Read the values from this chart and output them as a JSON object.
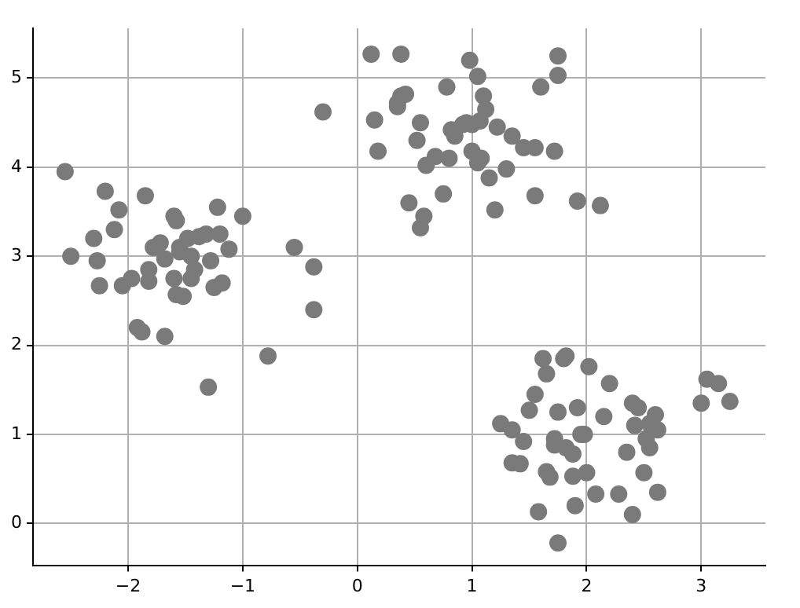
{
  "chart_data": {
    "type": "scatter",
    "marker": "circle",
    "grid": true,
    "xlim": [
      -2.83,
      3.56
    ],
    "ylim": [
      -0.47,
      5.56
    ],
    "xticks": [
      {
        "value": -2,
        "label": "−2"
      },
      {
        "value": -1,
        "label": "−1"
      },
      0,
      1,
      2,
      3
    ],
    "yticks": [
      0,
      1,
      2,
      3,
      4,
      5
    ],
    "series": [
      {
        "color": "#7a7a7a",
        "x": [
          -2.55,
          -2.5,
          -2.3,
          -2.27,
          -2.2,
          -2.25,
          -2.12,
          -2.08,
          -2.05,
          -1.97,
          -1.88,
          -1.92,
          -1.85,
          -1.82,
          -1.82,
          -1.78,
          -1.72,
          -1.68,
          -1.68,
          -1.6,
          -1.58,
          -1.6,
          -1.58,
          -1.52,
          -1.55,
          -1.48,
          -1.45,
          -1.42,
          -1.38,
          -1.32,
          -1.3,
          -1.28,
          -1.25,
          -1.22,
          -1.2,
          -1.18,
          -1.12,
          -1.0,
          -0.78,
          -0.55,
          -0.38,
          -0.38,
          -0.3,
          -1.45,
          -1.55,
          0.12,
          0.38,
          0.15,
          0.18,
          0.35,
          0.38,
          0.42,
          0.45,
          0.52,
          0.55,
          0.55,
          0.58,
          0.6,
          0.68,
          0.75,
          0.8,
          0.82,
          0.85,
          0.78,
          0.95,
          0.98,
          1.0,
          1.0,
          1.05,
          1.07,
          1.08,
          1.1,
          1.12,
          1.15,
          1.2,
          1.22,
          1.3,
          1.35,
          1.45,
          1.55,
          1.55,
          1.6,
          1.75,
          1.75,
          1.72,
          1.92,
          2.12,
          1.05,
          0.35,
          0.92,
          1.25,
          1.35,
          1.45,
          1.35,
          1.42,
          1.5,
          1.55,
          1.62,
          1.65,
          1.58,
          1.65,
          1.68,
          1.72,
          1.75,
          1.72,
          1.8,
          1.82,
          1.75,
          1.82,
          1.88,
          1.88,
          1.9,
          1.92,
          1.98,
          2.0,
          2.02,
          2.08,
          2.15,
          2.2,
          2.28,
          2.35,
          2.4,
          2.45,
          2.42,
          2.4,
          2.5,
          2.52,
          2.55,
          2.55,
          2.6,
          2.62,
          2.62,
          3.0,
          3.05,
          3.15,
          3.25,
          1.95
        ],
        "values": [
          3.95,
          3.0,
          3.2,
          2.95,
          3.73,
          2.67,
          3.3,
          3.52,
          2.67,
          2.75,
          2.15,
          2.2,
          3.68,
          2.72,
          2.85,
          3.1,
          3.15,
          2.97,
          2.1,
          3.45,
          3.4,
          2.75,
          2.57,
          2.55,
          3.1,
          3.2,
          3.0,
          2.85,
          3.22,
          3.25,
          1.53,
          2.95,
          2.65,
          3.55,
          3.25,
          2.7,
          3.08,
          3.45,
          1.88,
          3.1,
          2.88,
          2.4,
          4.62,
          2.75,
          3.05,
          5.27,
          5.27,
          4.53,
          4.18,
          4.72,
          4.8,
          4.82,
          3.6,
          4.3,
          4.5,
          3.32,
          3.45,
          4.02,
          4.12,
          3.7,
          4.1,
          4.42,
          4.35,
          4.9,
          4.5,
          5.2,
          4.48,
          4.18,
          5.02,
          4.52,
          4.1,
          4.8,
          4.65,
          3.88,
          3.52,
          4.45,
          3.98,
          4.35,
          4.22,
          4.22,
          3.68,
          4.9,
          5.25,
          5.03,
          4.18,
          3.62,
          3.57,
          4.05,
          4.68,
          4.48,
          1.12,
          1.05,
          0.92,
          0.68,
          0.67,
          1.27,
          1.45,
          1.85,
          1.68,
          0.13,
          0.58,
          0.52,
          0.88,
          1.25,
          0.95,
          1.85,
          1.88,
          -0.22,
          0.85,
          0.53,
          0.78,
          0.2,
          1.3,
          1.0,
          0.57,
          1.76,
          0.33,
          1.2,
          1.57,
          0.33,
          0.8,
          1.35,
          1.3,
          1.1,
          0.1,
          0.57,
          0.95,
          1.12,
          0.85,
          1.22,
          1.05,
          0.35,
          1.35,
          1.62,
          1.57,
          1.37,
          1.0
        ]
      }
    ]
  }
}
